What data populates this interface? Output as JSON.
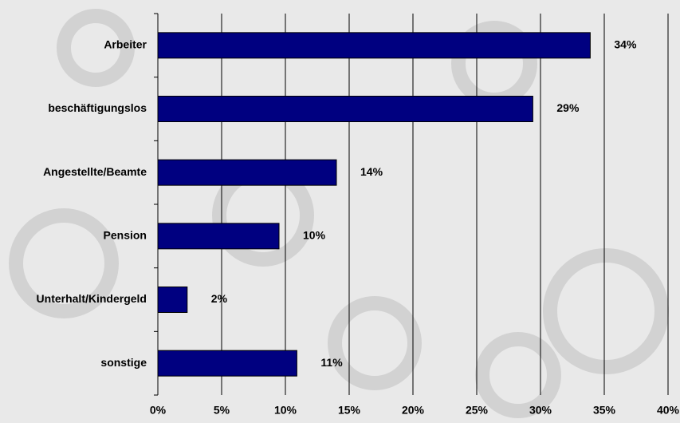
{
  "chart_data": {
    "type": "bar",
    "orientation": "horizontal",
    "categories": [
      "Arbeiter",
      "beschäftigungslos",
      "Angestellte/Beamte",
      "Pension",
      "Unterhalt/Kindergeld",
      "sonstige"
    ],
    "values": [
      33.9,
      29.4,
      14,
      9.5,
      2.3,
      10.9
    ],
    "value_labels": [
      "34%",
      "29%",
      "14%",
      "10%",
      "2%",
      "11%"
    ],
    "color": "#000080",
    "xlim": [
      0,
      40
    ],
    "xticks": [
      {
        "value": 0,
        "label": "0%"
      },
      {
        "value": 5,
        "label": "5%"
      },
      {
        "value": 10,
        "label": "10%"
      },
      {
        "value": 15,
        "label": "15%"
      },
      {
        "value": 20,
        "label": "20%"
      },
      {
        "value": 25,
        "label": "25%"
      },
      {
        "value": 30,
        "label": "30%"
      },
      {
        "value": 35,
        "label": "35%"
      },
      {
        "value": 40,
        "label": "40%"
      }
    ],
    "grid": true
  }
}
